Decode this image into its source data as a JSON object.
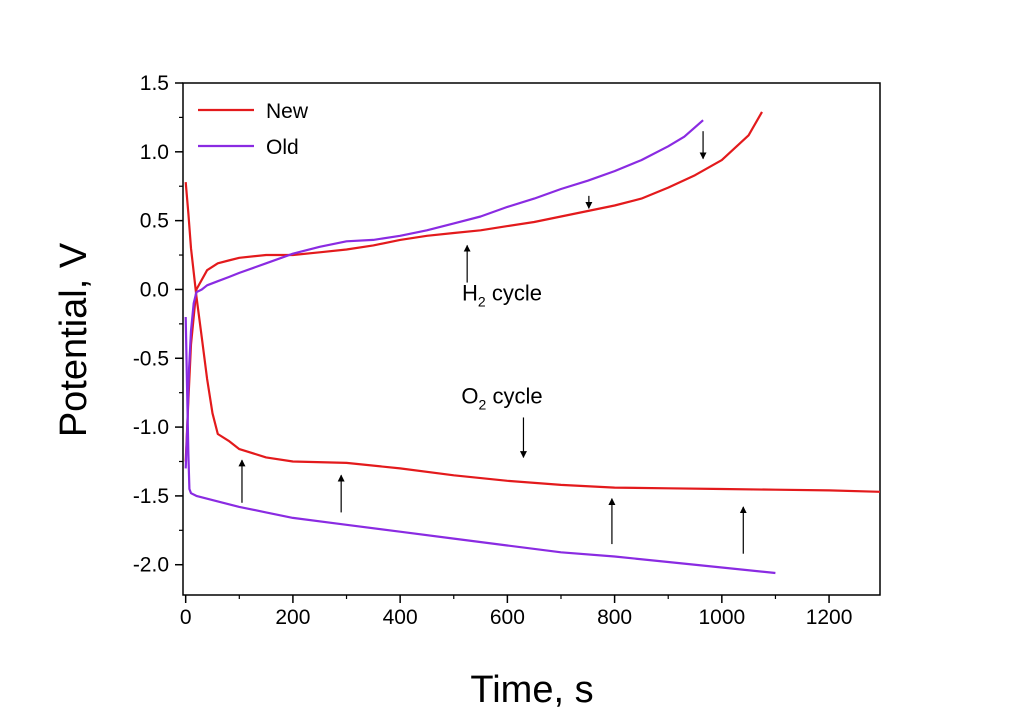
{
  "chart_data": {
    "type": "line",
    "title": "",
    "xlabel": "Time, s",
    "ylabel": "Potential, V",
    "xlim": [
      -5,
      1295
    ],
    "ylim": [
      -2.22,
      1.5
    ],
    "xticks": [
      0,
      200,
      400,
      600,
      800,
      1000,
      1200
    ],
    "yticks": [
      1.5,
      1.0,
      0.5,
      0.0,
      -0.5,
      -1.0,
      -1.5,
      -2.0
    ],
    "xtick_labels": [
      "0",
      "200",
      "400",
      "600",
      "800",
      "1000",
      "1200"
    ],
    "ytick_labels": [
      "1.5",
      "1.0",
      "0.5",
      "0.0",
      "-0.5",
      "-1.0",
      "-1.5",
      "-2.0"
    ],
    "legend": {
      "position": "top-left",
      "entries": [
        "New",
        "Old"
      ]
    },
    "colors": {
      "New": "#e31a1c",
      "Old": "#8a2be2",
      "axis": "#000000"
    },
    "series": [
      {
        "name": "New",
        "segments": [
          {
            "cycle": "H2",
            "x": [
              0,
              5,
              10,
              20,
              40,
              60,
              80,
              100,
              150,
              200,
              250,
              300,
              350,
              400,
              450,
              500,
              550,
              600,
              650,
              700,
              750,
              800,
              850,
              900,
              950,
              1000,
              1050,
              1075
            ],
            "y": [
              -1.25,
              -0.8,
              -0.4,
              0.0,
              0.14,
              0.19,
              0.21,
              0.23,
              0.25,
              0.25,
              0.27,
              0.29,
              0.32,
              0.36,
              0.39,
              0.41,
              0.43,
              0.46,
              0.49,
              0.53,
              0.57,
              0.61,
              0.66,
              0.74,
              0.83,
              0.94,
              1.12,
              1.29
            ]
          },
          {
            "cycle": "O2",
            "x": [
              0,
              5,
              10,
              20,
              30,
              40,
              50,
              60,
              80,
              100,
              150,
              200,
              300,
              400,
              500,
              600,
              700,
              800,
              900,
              1000,
              1100,
              1200,
              1295
            ],
            "y": [
              0.78,
              0.55,
              0.3,
              -0.05,
              -0.35,
              -0.65,
              -0.9,
              -1.05,
              -1.1,
              -1.16,
              -1.22,
              -1.25,
              -1.26,
              -1.3,
              -1.35,
              -1.39,
              -1.42,
              -1.44,
              -1.445,
              -1.45,
              -1.455,
              -1.46,
              -1.47
            ]
          }
        ]
      },
      {
        "name": "Old",
        "segments": [
          {
            "cycle": "H2",
            "x": [
              0,
              3,
              6,
              10,
              15,
              20,
              30,
              40,
              60,
              80,
              100,
              150,
              200,
              250,
              300,
              350,
              400,
              450,
              500,
              550,
              600,
              650,
              700,
              750,
              800,
              850,
              900,
              930,
              965
            ],
            "y": [
              -1.3,
              -1.0,
              -0.6,
              -0.3,
              -0.1,
              -0.02,
              0.0,
              0.03,
              0.06,
              0.09,
              0.12,
              0.19,
              0.26,
              0.31,
              0.35,
              0.36,
              0.39,
              0.43,
              0.48,
              0.53,
              0.6,
              0.66,
              0.73,
              0.79,
              0.86,
              0.94,
              1.04,
              1.11,
              1.23
            ]
          },
          {
            "cycle": "O2",
            "x": [
              0,
              3,
              5,
              7,
              10,
              20,
              40,
              60,
              100,
              150,
              200,
              300,
              400,
              500,
              600,
              700,
              800,
              900,
              1000,
              1100
            ],
            "y": [
              -0.2,
              -0.8,
              -1.2,
              -1.45,
              -1.48,
              -1.5,
              -1.52,
              -1.54,
              -1.58,
              -1.62,
              -1.66,
              -1.71,
              -1.76,
              -1.81,
              -1.86,
              -1.91,
              -1.94,
              -1.98,
              -2.02,
              -2.06
            ]
          }
        ]
      }
    ],
    "annotations": [
      {
        "name": "h2-cycle",
        "text": "H",
        "subscript": "2",
        "suffix": " cycle",
        "x": 590,
        "y": -0.08
      },
      {
        "name": "o2-cycle",
        "text": "O",
        "subscript": "2",
        "suffix": " cycle",
        "x": 590,
        "y": -0.83
      }
    ],
    "arrows": [
      {
        "x": 525,
        "from": 0.05,
        "to": 0.32
      },
      {
        "x": 752,
        "from": 0.68,
        "to": 0.59
      },
      {
        "x": 965,
        "from": 1.15,
        "to": 0.95
      },
      {
        "x": 630,
        "from": -0.93,
        "to": -1.22
      },
      {
        "x": 105,
        "from": -1.55,
        "to": -1.24
      },
      {
        "x": 290,
        "from": -1.62,
        "to": -1.35
      },
      {
        "x": 795,
        "from": -1.85,
        "to": -1.52
      },
      {
        "x": 1040,
        "from": -1.92,
        "to": -1.58
      }
    ]
  }
}
